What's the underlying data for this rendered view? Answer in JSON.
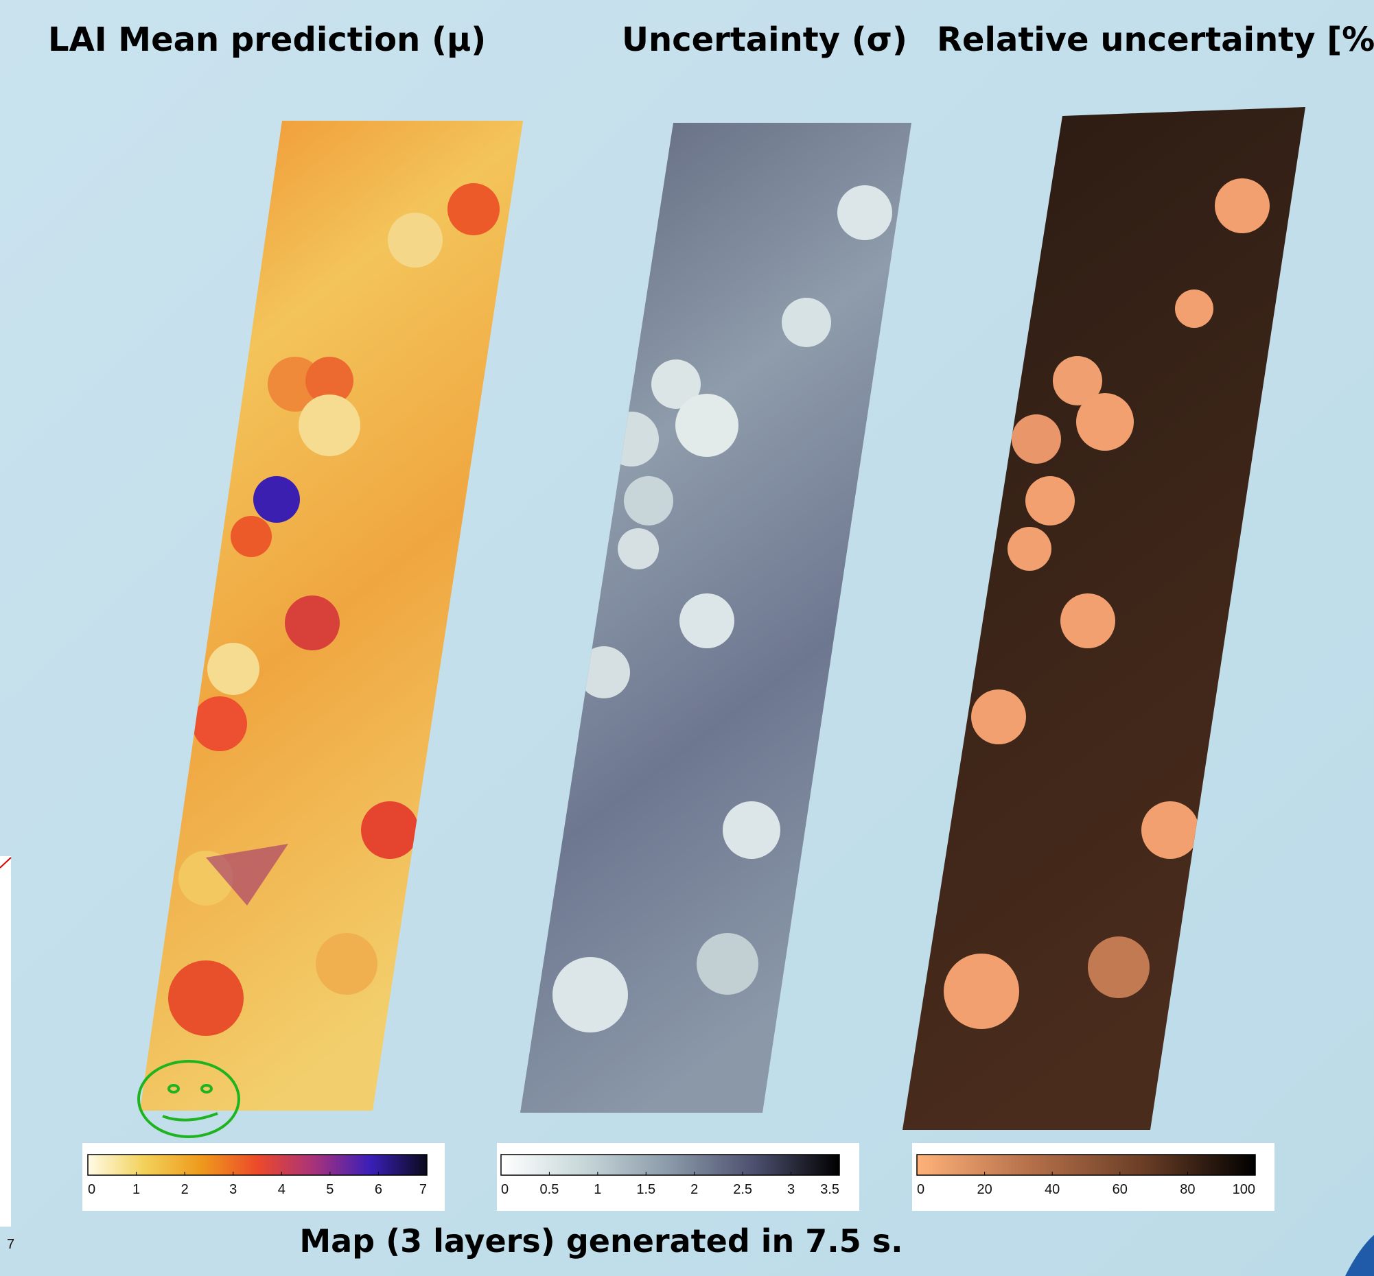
{
  "panels": [
    {
      "title": "LAI Mean prediction (μ)",
      "colorbar": {
        "lim": [
          0,
          7
        ],
        "ticks": [
          0,
          1,
          2,
          3,
          4,
          5,
          6,
          7
        ],
        "colors": [
          "#fffbe6",
          "#f2d15a",
          "#ee9a1c",
          "#ec4a2a",
          "#a8327a",
          "#3a1fb8",
          "#0a0a1a"
        ]
      }
    },
    {
      "title": "Uncertainty (σ)",
      "colorbar": {
        "lim": [
          0,
          3.5
        ],
        "ticks": [
          0,
          0.5,
          1,
          1.5,
          2,
          2.5,
          3,
          3.5
        ],
        "colors": [
          "#ffffff",
          "#c6d6d8",
          "#8a99a8",
          "#4c4f6e",
          "#000000"
        ]
      }
    },
    {
      "title": "Relative uncertainty [%]",
      "colorbar": {
        "lim": [
          0,
          100
        ],
        "ticks": [
          0,
          20,
          40,
          60,
          80,
          100
        ],
        "colors": [
          "#ffb27a",
          "#b5704a",
          "#6b3e26",
          "#000000"
        ]
      }
    }
  ],
  "caption": "Map (3 layers) generated in 7.5 s.",
  "left_fragment_tick": 7
}
